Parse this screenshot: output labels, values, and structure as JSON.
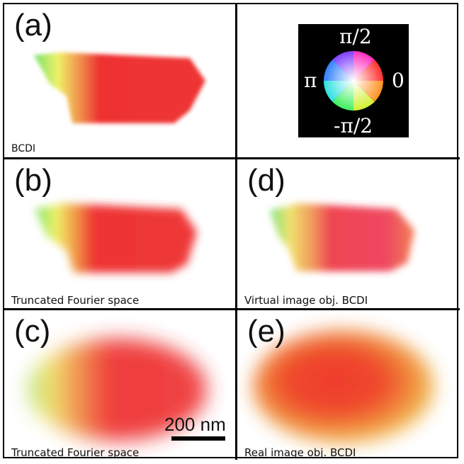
{
  "panels": {
    "a": {
      "letter": "(a)",
      "caption": "BCDI"
    },
    "b": {
      "letter": "(b)",
      "caption": "Truncated Fourier space"
    },
    "c": {
      "letter": "(c)",
      "caption": "Truncated Fourier space"
    },
    "d": {
      "letter": "(d)",
      "caption": "Virtual image obj. BCDI"
    },
    "e": {
      "letter": "(e)",
      "caption": "Real image obj. BCDI"
    }
  },
  "colorwheel": {
    "top_label": "π/2",
    "bottom_label": "-π/2",
    "left_label": "π",
    "right_label": "0"
  },
  "scalebar": {
    "label": "200 nm"
  },
  "colors": {
    "red": "#ee2020",
    "orange": "#f0a030",
    "yellow": "#f0f050",
    "green": "#60e060",
    "border": "#000000"
  }
}
